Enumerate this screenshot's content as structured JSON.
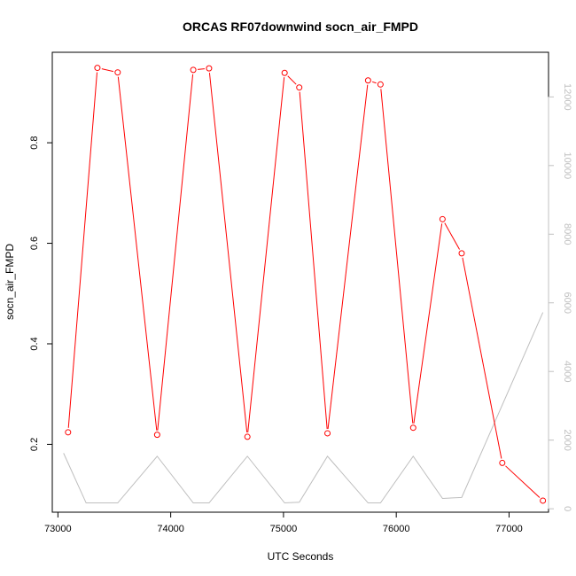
{
  "chart_data": {
    "type": "line",
    "title": "ORCAS RF07downwind socn_air_FMPD",
    "xlabel": "UTC Seconds",
    "ylabel": "socn_air_FMPD",
    "xlim": [
      72950,
      77350
    ],
    "ylim": [
      0.065,
      0.98
    ],
    "y2lim": [
      -100,
      13300
    ],
    "x_ticks": [
      73000,
      74000,
      75000,
      76000,
      77000
    ],
    "x_tick_labels": [
      "73000",
      "74000",
      "75000",
      "76000",
      "77000"
    ],
    "y_ticks": [
      0.2,
      0.4,
      0.6,
      0.8
    ],
    "y_tick_labels": [
      "0.2",
      "0.4",
      "0.6",
      "0.8"
    ],
    "y2_ticks": [
      0,
      2000,
      4000,
      6000,
      8000,
      10000,
      12000
    ],
    "y2_tick_labels": [
      "0",
      "2000",
      "4000",
      "6000",
      "8000",
      "10000",
      "12000"
    ],
    "grid": false,
    "colors": {
      "primary": "#ff0000",
      "secondary": "#bebebe",
      "right_axis": "#c0c0c0"
    },
    "series": [
      {
        "axis": "left",
        "style": "line-with-circles",
        "x": [
          73090,
          73350,
          73530,
          73880,
          74200,
          74340,
          74680,
          75010,
          75140,
          75390,
          75750,
          75860,
          76150,
          76410,
          76580,
          76940,
          77300
        ],
        "y": [
          0.224,
          0.949,
          0.94,
          0.219,
          0.945,
          0.948,
          0.215,
          0.939,
          0.91,
          0.222,
          0.924,
          0.916,
          0.233,
          0.648,
          0.58,
          0.163,
          0.088
        ]
      },
      {
        "axis": "right",
        "style": "line",
        "x": [
          73050,
          73250,
          73530,
          73880,
          74200,
          74340,
          74680,
          75010,
          75140,
          75390,
          75750,
          75860,
          76150,
          76410,
          76580,
          77300
        ],
        "y": [
          1620,
          170,
          170,
          1530,
          170,
          170,
          1530,
          170,
          190,
          1530,
          170,
          170,
          1530,
          300,
          330,
          5720
        ]
      }
    ]
  }
}
